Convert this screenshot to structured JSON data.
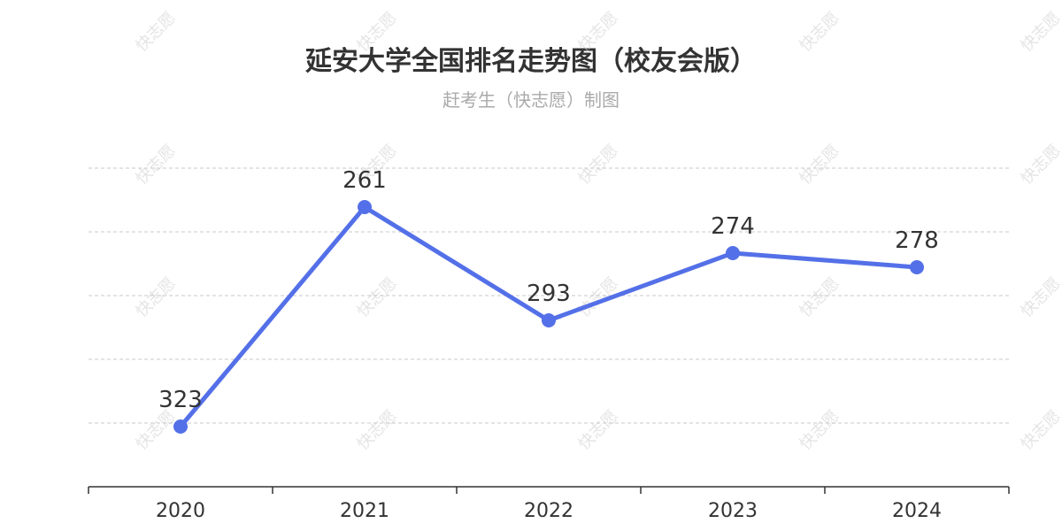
{
  "header": {
    "title": "延安大学全国排名走势图（校友会版）",
    "subtitle": "赶考生（快志愿）制图"
  },
  "watermark": {
    "text": "快志愿"
  },
  "colors": {
    "line": "#5470e8",
    "grid": "#c8c8c8",
    "axis": "#333333",
    "label": "#333333"
  },
  "chart_data": {
    "type": "line",
    "title": "延安大学全国排名走势图（校友会版）",
    "subtitle": "赶考生（快志愿）制图",
    "x": [
      "2020",
      "2021",
      "2022",
      "2023",
      "2024"
    ],
    "series": [
      {
        "values": [
          323,
          261,
          293,
          274,
          278
        ]
      }
    ],
    "y_inverted": true,
    "ylim": [
      250,
      340
    ],
    "y_tick_labels_shown": false,
    "grid": "horizontal dashed",
    "legend": "none"
  }
}
